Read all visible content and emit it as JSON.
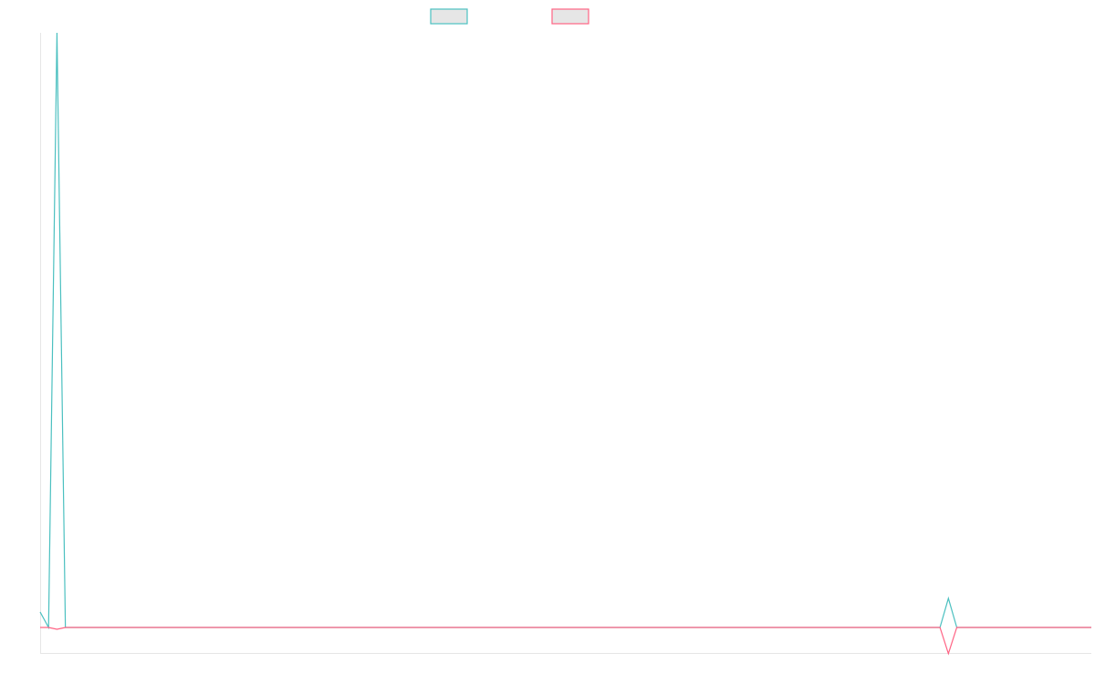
{
  "chart_data": {
    "type": "line",
    "title": "",
    "xlabel": "",
    "ylabel": "",
    "grid": false,
    "legend_placement": "top-center",
    "series": [
      {
        "color": "#4bc0c0",
        "values": [
          2.6,
          0,
          100,
          0,
          0,
          0,
          0,
          0,
          0,
          0,
          0,
          0,
          0,
          0,
          0,
          0,
          0,
          0,
          0,
          0,
          0,
          0,
          0,
          0,
          0,
          0,
          0,
          0,
          0,
          0,
          0,
          0,
          0,
          0,
          0,
          0,
          0,
          0,
          0,
          0,
          0,
          0,
          0,
          0,
          0,
          0,
          0,
          0,
          0,
          0,
          0,
          0,
          0,
          0,
          0,
          0,
          0,
          0,
          0,
          0,
          0,
          0,
          0,
          0,
          0,
          0,
          0,
          0,
          0,
          0,
          0,
          0,
          0,
          0,
          0,
          0,
          0,
          0,
          0,
          0,
          0,
          0,
          0,
          0,
          0,
          0,
          0,
          0,
          0,
          0,
          0,
          0,
          0,
          0,
          0,
          0,
          0,
          0,
          0,
          0,
          0,
          0,
          0,
          0,
          0,
          0,
          0,
          0,
          4.9,
          0,
          0,
          0,
          0,
          0,
          0,
          0,
          0,
          0,
          0,
          0,
          0,
          0,
          0,
          0,
          0,
          0
        ]
      },
      {
        "color": "#ff6384",
        "values": [
          0,
          0,
          -0.3,
          0,
          0,
          0,
          0,
          0,
          0,
          0,
          0,
          0,
          0,
          0,
          0,
          0,
          0,
          0,
          0,
          0,
          0,
          0,
          0,
          0,
          0,
          0,
          0,
          0,
          0,
          0,
          0,
          0,
          0,
          0,
          0,
          0,
          0,
          0,
          0,
          0,
          0,
          0,
          0,
          0,
          0,
          0,
          0,
          0,
          0,
          0,
          0,
          0,
          0,
          0,
          0,
          0,
          0,
          0,
          0,
          0,
          0,
          0,
          0,
          0,
          0,
          0,
          0,
          0,
          0,
          0,
          0,
          0,
          0,
          0,
          0,
          0,
          0,
          0,
          0,
          0,
          0,
          0,
          0,
          0,
          0,
          0,
          0,
          0,
          0,
          0,
          0,
          0,
          0,
          0,
          0,
          0,
          0,
          0,
          0,
          0,
          0,
          0,
          0,
          0,
          0,
          0,
          0,
          0,
          -4.4,
          0,
          0,
          0,
          0,
          0,
          0,
          0,
          0,
          0,
          0,
          0,
          0,
          0,
          0,
          0,
          0,
          0
        ]
      }
    ],
    "ylim": [
      -4.4,
      100
    ]
  }
}
